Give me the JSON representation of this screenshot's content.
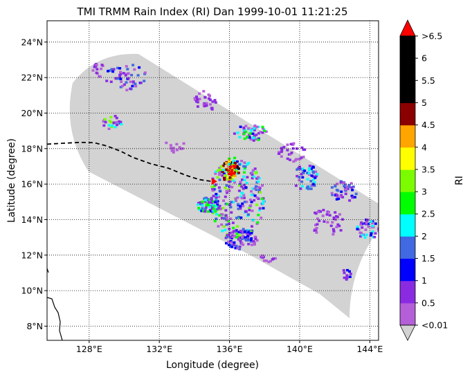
{
  "chart_data": {
    "type": "heatmap",
    "title": "TMI TRMM Rain Index (RI) Dan 1999-10-01 11:21:25",
    "xlabel": "Longitude (degree)",
    "ylabel": "Latitude (degree)",
    "xlim": [
      125.6,
      144.5
    ],
    "ylim": [
      7.2,
      25.2
    ],
    "x_ticks": [
      128,
      132,
      136,
      140,
      144
    ],
    "x_tick_labels": [
      "128°E",
      "132°E",
      "136°E",
      "140°E",
      "144°E"
    ],
    "y_ticks": [
      8,
      10,
      12,
      14,
      16,
      18,
      20,
      22,
      24
    ],
    "y_tick_labels": [
      "8°N",
      "10°N",
      "12°N",
      "14°N",
      "16°N",
      "18°N",
      "20°N",
      "22°N",
      "24°N"
    ],
    "grid": true,
    "grid_style": "dotted",
    "colorbar": {
      "label": "RI",
      "bounds": [
        0.01,
        0.5,
        1,
        1.5,
        2,
        2.5,
        3,
        3.5,
        4,
        4.5,
        5,
        5.5,
        6,
        6.5
      ],
      "tick_labels": [
        "<0.01",
        "0.5",
        "1",
        "1.5",
        "2",
        "2.5",
        "3",
        "3.5",
        "4",
        "4.5",
        "5",
        "5.5",
        "6",
        ">6.5"
      ],
      "colors": [
        "#b45fd8",
        "#8a2be2",
        "#0000ff",
        "#4169e1",
        "#00ffff",
        "#00ff00",
        "#7cfc00",
        "#ffff00",
        "#ffa500",
        "#8b0000",
        "#000000",
        "#000000",
        "#000000"
      ],
      "under_color": "#d3d3d3",
      "over_color": "#ff0000"
    },
    "swath_background_color": "#d3d3d3",
    "track": {
      "style": "dashed",
      "color": "#000000",
      "lon": [
        125.6,
        126.5,
        127.5,
        128.3,
        129.0,
        129.8,
        130.5,
        131.5,
        132.5,
        133.5,
        134.3,
        135.0
      ],
      "lat": [
        18.25,
        18.3,
        18.35,
        18.33,
        18.15,
        17.85,
        17.5,
        17.15,
        16.9,
        16.5,
        16.25,
        16.15
      ]
    },
    "storm_center": {
      "lon": 135.1,
      "lat": 16.15,
      "color": "#ff0000"
    }
  }
}
